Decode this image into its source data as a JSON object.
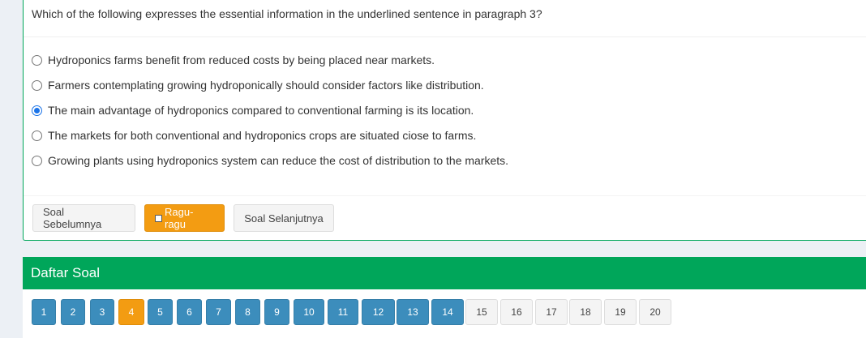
{
  "question": {
    "text": "Which of the following expresses the essential information in the underlined sentence in paragraph 3?",
    "options": [
      {
        "label": "Hydroponics farms benefit from reduced costs by being placed near markets.",
        "checked": false
      },
      {
        "label": "Farmers contemplating growing hydroponically should consider factors like distribution.",
        "checked": false
      },
      {
        "label": "The main advantage of hydroponics compared to conventional farming is its location.",
        "checked": true
      },
      {
        "label": "The markets for both conventional and hydroponics crops are situated ciose to farms.",
        "checked": false
      },
      {
        "label": "Growing plants using hydroponics system can reduce the cost of distribution to the markets.",
        "checked": false
      }
    ]
  },
  "buttons": {
    "prev_label": "Soal Sebelumnya",
    "doubt_label": "Ragu-ragu",
    "next_label": "Soal Selanjutnya"
  },
  "question_list": {
    "title": "Daftar Soal",
    "current": 4,
    "items": [
      {
        "label": "1",
        "state": "answered"
      },
      {
        "label": "2",
        "state": "answered"
      },
      {
        "label": "3",
        "state": "answered"
      },
      {
        "label": "4",
        "state": "current"
      },
      {
        "label": "5",
        "state": "answered"
      },
      {
        "label": "6",
        "state": "answered"
      },
      {
        "label": "7",
        "state": "answered"
      },
      {
        "label": "8",
        "state": "answered"
      },
      {
        "label": "9",
        "state": "answered"
      },
      {
        "label": "10",
        "state": "answered"
      },
      {
        "label": "11",
        "state": "answered"
      },
      {
        "label": "12",
        "state": "answered"
      },
      {
        "label": "13",
        "state": "answered"
      },
      {
        "label": "14",
        "state": "answered"
      },
      {
        "label": "15",
        "state": "unanswered"
      },
      {
        "label": "16",
        "state": "unanswered"
      },
      {
        "label": "17",
        "state": "unanswered"
      },
      {
        "label": "18",
        "state": "unanswered"
      },
      {
        "label": "19",
        "state": "unanswered"
      },
      {
        "label": "20",
        "state": "unanswered"
      }
    ]
  },
  "colors": {
    "header_green": "#00a65a",
    "doubt_orange": "#f39c12",
    "answered_blue": "#3c8dbc",
    "radio_blue": "#1a73e8"
  }
}
